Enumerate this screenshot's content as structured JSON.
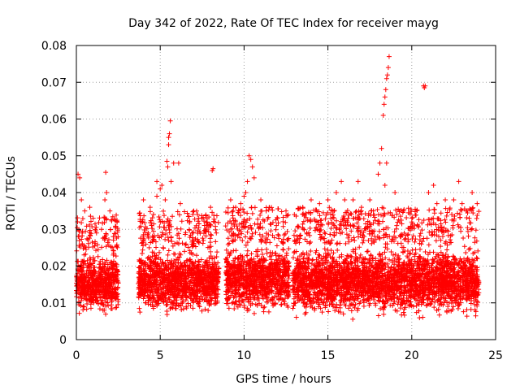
{
  "chart_data": {
    "type": "scatter",
    "title": "Day 342 of 2022, Rate Of TEC Index for receiver mayg",
    "xlabel": "GPS time / hours",
    "ylabel": "ROTI / TECUs",
    "xlim": [
      0,
      25
    ],
    "ylim": [
      0,
      0.08
    ],
    "x_ticks": [
      0,
      5,
      10,
      15,
      20,
      25
    ],
    "y_ticks": [
      0,
      0.01,
      0.02,
      0.03,
      0.04,
      0.05,
      0.06,
      0.07,
      0.08
    ],
    "x_tick_labels": [
      "0",
      "5",
      "10",
      "15",
      "20",
      "25"
    ],
    "y_tick_labels": [
      "0",
      "0.01",
      "0.02",
      "0.03",
      "0.04",
      "0.05",
      "0.06",
      "0.07",
      "0.08"
    ],
    "grid": true,
    "marker": "+",
    "color": "#ff0000",
    "series": [
      {
        "name": "ROTI",
        "points": [
          [
            0.1,
            0.045
          ],
          [
            0.2,
            0.044
          ],
          [
            0.3,
            0.038
          ],
          [
            0.5,
            0.035
          ],
          [
            0.8,
            0.036
          ],
          [
            1.0,
            0.033
          ],
          [
            1.5,
            0.03
          ],
          [
            1.7,
            0.038
          ],
          [
            1.8,
            0.04
          ],
          [
            2.0,
            0.035
          ],
          [
            2.2,
            0.028
          ],
          [
            1.2,
            0.029
          ],
          [
            1.75,
            0.0455
          ],
          [
            4.0,
            0.038
          ],
          [
            4.4,
            0.036
          ],
          [
            4.8,
            0.043
          ],
          [
            4.8,
            0.039
          ],
          [
            5.0,
            0.041
          ],
          [
            5.1,
            0.042
          ],
          [
            5.3,
            0.038
          ],
          [
            5.4,
            0.0485
          ],
          [
            5.45,
            0.047
          ],
          [
            5.5,
            0.053
          ],
          [
            5.5,
            0.055
          ],
          [
            5.55,
            0.056
          ],
          [
            5.6,
            0.0595
          ],
          [
            5.65,
            0.043
          ],
          [
            5.8,
            0.048
          ],
          [
            6.1,
            0.048
          ],
          [
            6.2,
            0.037
          ],
          [
            7.0,
            0.035
          ],
          [
            7.3,
            0.033
          ],
          [
            7.8,
            0.032
          ],
          [
            8.0,
            0.036
          ],
          [
            8.1,
            0.046
          ],
          [
            8.15,
            0.0465
          ],
          [
            9.2,
            0.038
          ],
          [
            9.5,
            0.036
          ],
          [
            9.8,
            0.037
          ],
          [
            10.0,
            0.039
          ],
          [
            10.1,
            0.04
          ],
          [
            10.2,
            0.043
          ],
          [
            10.3,
            0.05
          ],
          [
            10.4,
            0.049
          ],
          [
            10.5,
            0.047
          ],
          [
            10.6,
            0.044
          ],
          [
            11.0,
            0.038
          ],
          [
            11.5,
            0.036
          ],
          [
            12.0,
            0.033
          ],
          [
            12.5,
            0.035
          ],
          [
            13.0,
            0.034
          ],
          [
            13.5,
            0.036
          ],
          [
            14.0,
            0.038
          ],
          [
            14.5,
            0.037
          ],
          [
            15.0,
            0.038
          ],
          [
            15.5,
            0.04
          ],
          [
            15.8,
            0.043
          ],
          [
            16.0,
            0.038
          ],
          [
            16.5,
            0.038
          ],
          [
            16.8,
            0.043
          ],
          [
            17.0,
            0.036
          ],
          [
            17.5,
            0.038
          ],
          [
            18.0,
            0.045
          ],
          [
            18.1,
            0.048
          ],
          [
            18.2,
            0.052
          ],
          [
            18.3,
            0.061
          ],
          [
            18.35,
            0.064
          ],
          [
            18.4,
            0.066
          ],
          [
            18.45,
            0.068
          ],
          [
            18.5,
            0.071
          ],
          [
            18.55,
            0.072
          ],
          [
            18.6,
            0.074
          ],
          [
            18.65,
            0.077
          ],
          [
            18.4,
            0.042
          ],
          [
            18.5,
            0.048
          ],
          [
            19.0,
            0.04
          ],
          [
            19.5,
            0.035
          ],
          [
            20.0,
            0.032
          ],
          [
            20.7,
            0.069
          ],
          [
            20.75,
            0.0685
          ],
          [
            20.8,
            0.069
          ],
          [
            21.0,
            0.04
          ],
          [
            21.3,
            0.042
          ],
          [
            21.5,
            0.037
          ],
          [
            22.0,
            0.038
          ],
          [
            22.5,
            0.038
          ],
          [
            22.8,
            0.043
          ],
          [
            23.0,
            0.037
          ],
          [
            23.3,
            0.035
          ],
          [
            23.6,
            0.04
          ],
          [
            23.9,
            0.037
          ]
        ]
      }
    ],
    "bulk_bands": [
      {
        "x_start": 0.0,
        "x_end": 2.5,
        "y_low": 0.006,
        "y_high": 0.024
      },
      {
        "x_start": 3.7,
        "x_end": 8.5,
        "y_low": 0.006,
        "y_high": 0.025
      },
      {
        "x_start": 8.9,
        "x_end": 12.7,
        "y_low": 0.006,
        "y_high": 0.026
      },
      {
        "x_start": 12.9,
        "x_end": 24.0,
        "y_low": 0.005,
        "y_high": 0.026
      }
    ]
  }
}
